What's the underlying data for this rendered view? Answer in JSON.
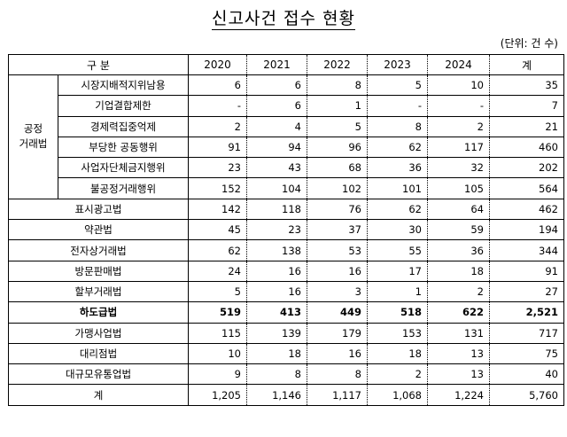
{
  "title": "신고사건 접수 현황",
  "unit": "(단위: 건 수)",
  "columns": {
    "label": "구 분",
    "years": [
      "2020",
      "2021",
      "2022",
      "2023",
      "2024"
    ],
    "total": "계"
  },
  "group": {
    "line1": "공정",
    "line2": "거래법"
  },
  "rows": [
    {
      "label": "시장지배적지위남용",
      "values": [
        "6",
        "6",
        "8",
        "5",
        "10"
      ],
      "total": "35"
    },
    {
      "label": "기업결합제한",
      "values": [
        "-",
        "6",
        "1",
        "-",
        "-"
      ],
      "total": "7"
    },
    {
      "label": "경제력집중억제",
      "values": [
        "2",
        "4",
        "5",
        "8",
        "2"
      ],
      "total": "21"
    },
    {
      "label": "부당한 공동행위",
      "values": [
        "91",
        "94",
        "96",
        "62",
        "117"
      ],
      "total": "460"
    },
    {
      "label": "사업자단체금지행위",
      "values": [
        "23",
        "43",
        "68",
        "36",
        "32"
      ],
      "total": "202"
    },
    {
      "label": "불공정거래행위",
      "values": [
        "152",
        "104",
        "102",
        "101",
        "105"
      ],
      "total": "564"
    },
    {
      "label": "표시광고법",
      "values": [
        "142",
        "118",
        "76",
        "62",
        "64"
      ],
      "total": "462"
    },
    {
      "label": "약관법",
      "values": [
        "45",
        "23",
        "37",
        "30",
        "59"
      ],
      "total": "194"
    },
    {
      "label": "전자상거래법",
      "values": [
        "62",
        "138",
        "53",
        "55",
        "36"
      ],
      "total": "344"
    },
    {
      "label": "방문판매법",
      "values": [
        "24",
        "16",
        "16",
        "17",
        "18"
      ],
      "total": "91"
    },
    {
      "label": "할부거래법",
      "values": [
        "5",
        "16",
        "3",
        "1",
        "2"
      ],
      "total": "27"
    },
    {
      "label": "하도급법",
      "values": [
        "519",
        "413",
        "449",
        "518",
        "622"
      ],
      "total": "2,521"
    },
    {
      "label": "가맹사업법",
      "values": [
        "115",
        "139",
        "179",
        "153",
        "131"
      ],
      "total": "717"
    },
    {
      "label": "대리점법",
      "values": [
        "10",
        "18",
        "16",
        "18",
        "13"
      ],
      "total": "75"
    },
    {
      "label": "대규모유통업법",
      "values": [
        "9",
        "8",
        "8",
        "2",
        "13"
      ],
      "total": "40"
    },
    {
      "label": "계",
      "values": [
        "1,205",
        "1,146",
        "1,117",
        "1,068",
        "1,224"
      ],
      "total": "5,760"
    }
  ]
}
